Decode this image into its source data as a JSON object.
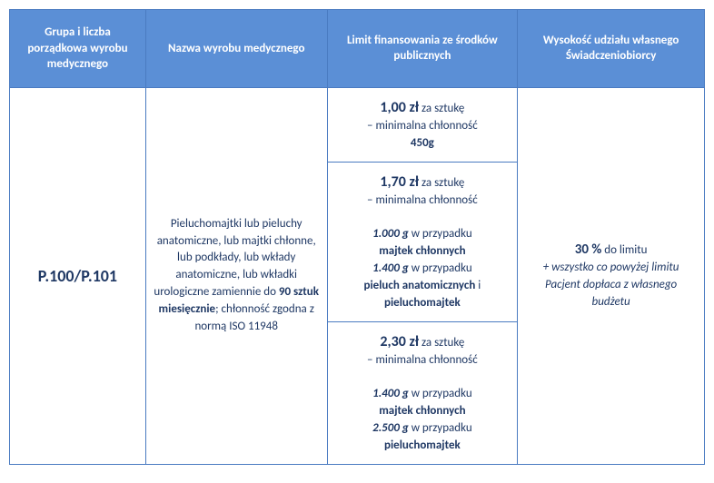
{
  "headers": {
    "col1": "Grupa i liczba porządkowa wyrobu medycznego",
    "col2": "Nazwa wyrobu medycznego",
    "col3": "Limit finansowania ze środków publicznych",
    "col4": "Wysokość udziału własnego Świadczeniobiorcy"
  },
  "groupCode": "P.100/P.101",
  "productName": {
    "part1": "Pieluchomajtki lub pieluchy anatomiczne, lub majtki chłonne, lub podkłady, lub wkłady anatomiczne, lub wkładki urologiczne zamiennie do ",
    "bold1": "90 sztuk miesięcznie",
    "part2": "; chłonność zgodna z normą ISO 11948"
  },
  "limits": {
    "tier1": {
      "price": "1,00 zł",
      "per": " za sztukę",
      "desc": "– minimalna chłonność",
      "weight": "450g"
    },
    "tier2": {
      "price": "1,70 zł",
      "per": " za sztukę",
      "desc": "– minimalna chłonność",
      "w1": "1.000 g",
      "t1a": " w przypadku ",
      "p1": "majtek chłonnych",
      "w2": "1.400 g",
      "t2a": " w przypadku ",
      "p2": "pieluch anatomicznych",
      "and": " i ",
      "p3": "pieluchomajtek"
    },
    "tier3": {
      "price": "2,30 zł",
      "per": " za sztukę",
      "desc": "– minimalna chłonność",
      "w1": "1.400 g",
      "t1a": " w przypadku ",
      "p1": "majtek chłonnych",
      "w2": "2.500 g",
      "t2a": " w przypadku ",
      "p2": "pieluchomajtek"
    }
  },
  "share": {
    "percent": "30 %",
    "toLimit": " do limitu",
    "note": "+ wszystko co powyżej limitu Pacjent dopłaca z własnego budżetu"
  },
  "colors": {
    "headerBg": "#5b8fd6",
    "headerText": "#ffffff",
    "border": "#4a7bc1",
    "bodyText": "#1f3864"
  }
}
